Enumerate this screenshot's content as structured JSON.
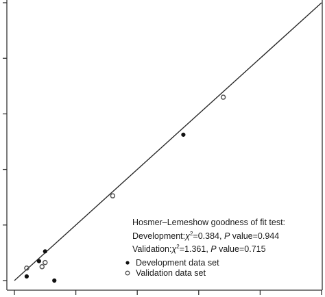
{
  "chart_data": {
    "type": "scatter",
    "title": "",
    "xlabel": "",
    "ylabel": "",
    "xlim": [
      0,
      1
    ],
    "ylim": [
      0,
      1
    ],
    "reference_line": {
      "x": [
        0,
        1
      ],
      "y": [
        0,
        1
      ]
    },
    "series": [
      {
        "name": "Development data set",
        "marker": "filled-circle",
        "color": "#111111",
        "points": [
          {
            "x": 0.04,
            "y": 0.015
          },
          {
            "x": 0.08,
            "y": 0.07
          },
          {
            "x": 0.1,
            "y": 0.105
          },
          {
            "x": 0.13,
            "y": 0.0
          },
          {
            "x": 0.55,
            "y": 0.525
          }
        ]
      },
      {
        "name": "Validation data set",
        "marker": "open-circle",
        "color": "#555555",
        "points": [
          {
            "x": 0.04,
            "y": 0.045
          },
          {
            "x": 0.09,
            "y": 0.05
          },
          {
            "x": 0.1,
            "y": 0.065
          },
          {
            "x": 0.32,
            "y": 0.305
          },
          {
            "x": 0.68,
            "y": 0.66
          }
        ]
      }
    ],
    "annotation": {
      "heading": "Hosmer–Lemeshow goodness of fit test:",
      "dev_prefix": "Development:",
      "dev_stat": "χ",
      "dev_sup": "2",
      "dev_value": "=0.384, ",
      "dev_p": "P",
      "dev_p_value": " value=0.944",
      "val_prefix": "Validation:",
      "val_stat": "χ",
      "val_sup": "2",
      "val_value": "=1.361, ",
      "val_p": "P",
      "val_p_value": " value=0.715"
    },
    "legend_position": "bottom-right"
  }
}
